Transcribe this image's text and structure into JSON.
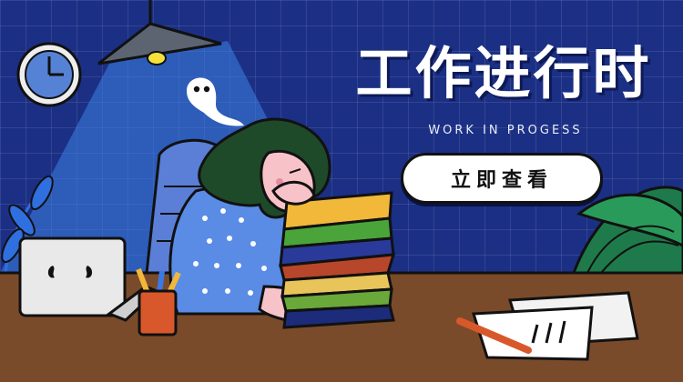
{
  "banner": {
    "title": "工作进行时",
    "subtitle": "WORK IN PROGESS",
    "cta_label": "立即查看"
  },
  "colors": {
    "background": "#1b2f84",
    "desk": "#7a4b2a",
    "lamp_light": "#3c82e6",
    "book_stack": [
      "#f1b83a",
      "#4aa43a",
      "#2a3a9a",
      "#b8462a",
      "#e8c45a",
      "#6aa83a",
      "#1c2b7a"
    ]
  },
  "icons": [
    "clock-icon",
    "lamp-icon",
    "ghost-icon",
    "laptop-icon",
    "pencil-cup-icon",
    "plant-icon",
    "papers-icon"
  ]
}
